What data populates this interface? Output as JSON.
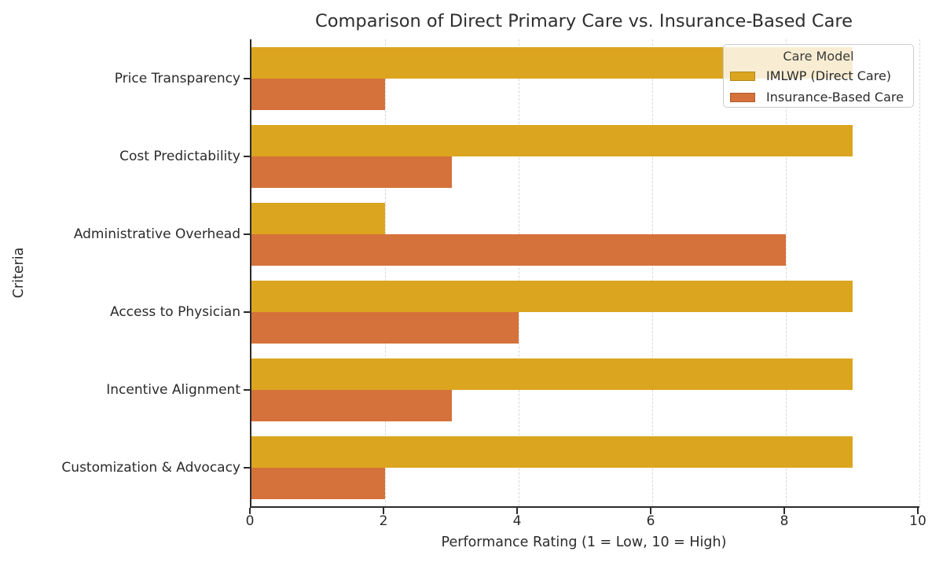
{
  "chart_data": {
    "type": "bar",
    "orientation": "horizontal",
    "title": "Comparison of Direct Primary Care vs. Insurance-Based Care",
    "xlabel": "Performance Rating (1 = Low, 10 = High)",
    "ylabel": "Criteria",
    "categories": [
      "Price Transparency",
      "Cost Predictability",
      "Administrative Overhead",
      "Access to Physician",
      "Incentive Alignment",
      "Customization & Advocacy"
    ],
    "series": [
      {
        "name": "IMLWP (Direct Care)",
        "color": "#DBA51F",
        "values": [
          9,
          9,
          2,
          9,
          9,
          9
        ]
      },
      {
        "name": "Insurance-Based Care",
        "color": "#D5713A",
        "values": [
          2,
          3,
          8,
          4,
          3,
          2
        ]
      }
    ],
    "xlim": [
      0,
      10
    ],
    "xticks": [
      0,
      2,
      4,
      6,
      8,
      10
    ],
    "grid": "vertical-dashed",
    "legend": {
      "title": "Care Model",
      "position": "upper-right"
    }
  }
}
